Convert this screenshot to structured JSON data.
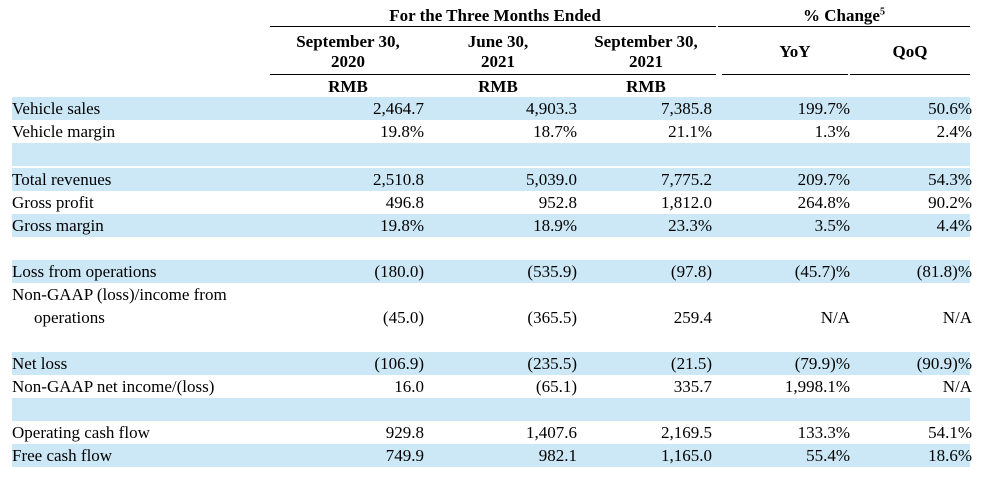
{
  "header": {
    "period_group": "For the Three Months Ended",
    "pct_change": "% Change",
    "pct_change_sup": "5",
    "columns": [
      {
        "line1": "September 30,",
        "line2": "2020",
        "currency": "RMB"
      },
      {
        "line1": "June 30,",
        "line2": "2021",
        "currency": "RMB"
      },
      {
        "line1": "September 30,",
        "line2": "2021",
        "currency": "RMB"
      }
    ],
    "yoy": "YoY",
    "qoq": "QoQ"
  },
  "rows": [
    {
      "label": "Vehicle sales",
      "values": [
        "2,464.7",
        "4,903.3",
        "7,385.8",
        "199.7%",
        "50.6%"
      ]
    },
    {
      "label": "Vehicle margin",
      "values": [
        "19.8%",
        "18.7%",
        "21.1%",
        "1.3%",
        "2.4%"
      ]
    },
    {
      "label": "Total revenues",
      "values": [
        "2,510.8",
        "5,039.0",
        "7,775.2",
        "209.7%",
        "54.3%"
      ]
    },
    {
      "label": "Gross profit",
      "values": [
        "496.8",
        "952.8",
        "1,812.0",
        "264.8%",
        "90.2%"
      ]
    },
    {
      "label": "Gross margin",
      "values": [
        "19.8%",
        "18.9%",
        "23.3%",
        "3.5%",
        "4.4%"
      ]
    },
    {
      "label": "Loss from operations",
      "values": [
        "(180.0)",
        "(535.9)",
        "(97.8)",
        "(45.7)%",
        "(81.8)%"
      ]
    },
    {
      "label": "Non-GAAP (loss)/income from",
      "label2": "operations",
      "values": [
        "(45.0)",
        "(365.5)",
        "259.4",
        "N/A",
        "N/A"
      ]
    },
    {
      "label": "Net loss",
      "values": [
        "(106.9)",
        "(235.5)",
        "(21.5)",
        "(79.9)%",
        "(90.9)%"
      ]
    },
    {
      "label": "Non-GAAP net income/(loss)",
      "values": [
        "16.0",
        "(65.1)",
        "335.7",
        "1,998.1%",
        "N/A"
      ]
    },
    {
      "label": "Operating cash flow",
      "values": [
        "929.8",
        "1,407.6",
        "2,169.5",
        "133.3%",
        "54.1%"
      ]
    },
    {
      "label": "Free cash flow",
      "values": [
        "749.9",
        "982.1",
        "1,165.0",
        "55.4%",
        "18.6%"
      ]
    }
  ]
}
